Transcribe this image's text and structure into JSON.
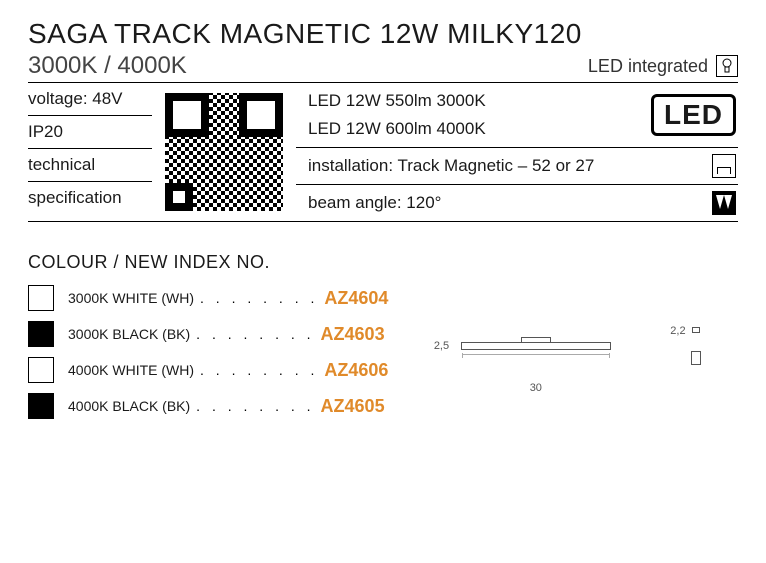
{
  "header": {
    "title": "SAGA TRACK MAGNETIC 12W MILKY120",
    "subtitle": "3000K / 4000K",
    "led_integrated": "LED integrated"
  },
  "specs_left": {
    "voltage": "voltage: 48V",
    "ip": "IP20",
    "tech": "technical",
    "spec": "specification"
  },
  "specs_right": {
    "led1": "LED 12W 550lm 3000K",
    "led2": "LED 12W 600lm 4000K",
    "led_badge": "LED",
    "installation": "installation: Track Magnetic – 52 or 27",
    "beam": "beam angle: 120°"
  },
  "color_section": {
    "heading": "COLOUR / NEW INDEX NO.",
    "items": [
      {
        "swatch": "white",
        "label": "3000K WHITE (WH)",
        "sku_prefix": "AZ",
        "sku_num": "4604"
      },
      {
        "swatch": "black",
        "label": "3000K BLACK (BK)",
        "sku_prefix": "AZ",
        "sku_num": "4603"
      },
      {
        "swatch": "white",
        "label": "4000K WHITE (WH)",
        "sku_prefix": "AZ",
        "sku_num": "4606"
      },
      {
        "swatch": "black",
        "label": "4000K BLACK (BK)",
        "sku_prefix": "AZ",
        "sku_num": "4605"
      }
    ],
    "dots": ". . . . . . . ."
  },
  "dimensions": {
    "height": "2,5",
    "width": "30",
    "side": "2,2"
  },
  "colors": {
    "accent": "#e08a2a",
    "text": "#1a1a1a",
    "border": "#000000"
  }
}
